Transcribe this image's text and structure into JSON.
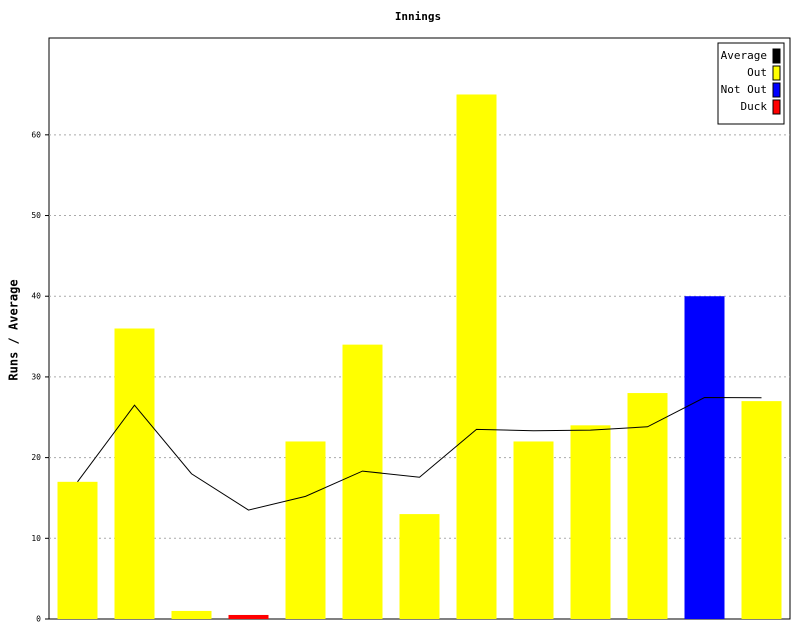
{
  "chart_data": {
    "type": "bar",
    "title": "Innings",
    "y_label": "Runs / Average",
    "categories": [
      null,
      null,
      null,
      null,
      null,
      null,
      null,
      null,
      null,
      null,
      null,
      null,
      null
    ],
    "series": [
      {
        "name": "Average",
        "type": "line",
        "color": "#000000",
        "values": [
          17,
          26.5,
          18,
          13.5,
          15.2,
          18.33,
          17.57,
          23.5,
          23.33,
          23.4,
          23.82,
          27.45,
          27.42
        ]
      },
      {
        "name": "Out",
        "color": "#ffff00",
        "values": [
          17,
          36,
          1,
          null,
          22,
          34,
          13,
          65,
          22,
          24,
          28,
          null,
          27
        ]
      },
      {
        "name": "Not Out",
        "color": "#0000ff",
        "values": [
          null,
          null,
          null,
          null,
          null,
          null,
          null,
          null,
          null,
          null,
          null,
          40,
          null
        ]
      },
      {
        "name": "Duck",
        "color": "#ff0000",
        "values": [
          null,
          null,
          null,
          0.5,
          null,
          null,
          null,
          null,
          null,
          null,
          null,
          null,
          null
        ]
      }
    ],
    "ylim": [
      0,
      72
    ],
    "yticks": [
      0,
      10,
      20,
      30,
      40,
      50,
      60
    ],
    "grid": true,
    "legend": "top-right"
  }
}
